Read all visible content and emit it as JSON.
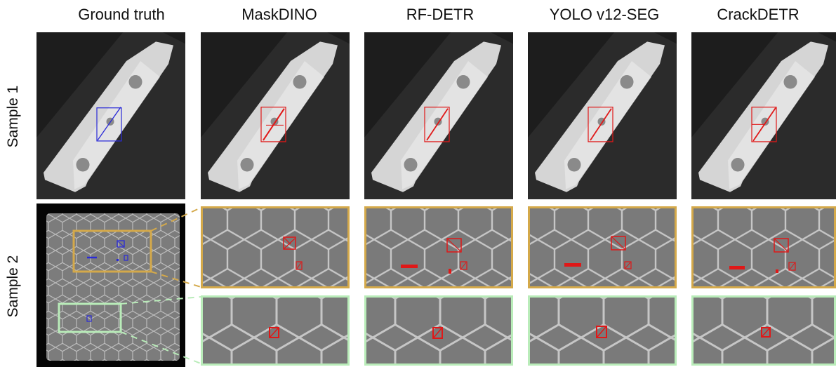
{
  "columns": [
    "Ground truth",
    "MaskDINO",
    "RF-DETR",
    "YOLO v12-SEG",
    "CrackDETR"
  ],
  "rows": [
    "Sample 1",
    "Sample 2"
  ],
  "colors": {
    "ground_truth": "#2a2ad8",
    "prediction": "#e01818",
    "zoom_top": "#d4a94a",
    "zoom_bottom": "#b9ecb9",
    "background": "#1e1e1e",
    "part": "#d2d2d2",
    "honeycomb": "#767676"
  }
}
